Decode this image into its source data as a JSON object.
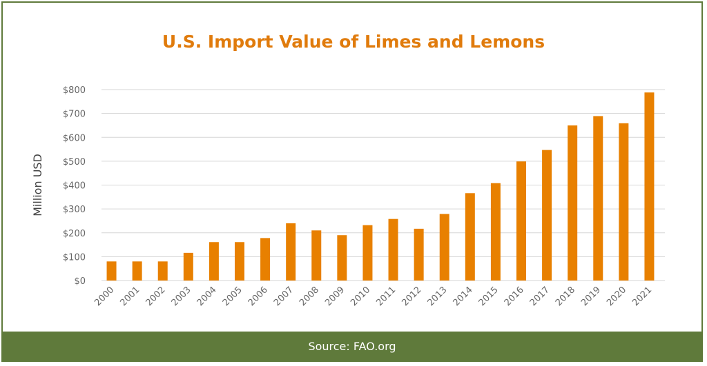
{
  "chart_data": {
    "type": "bar",
    "title": "U.S. Import Value of Limes and Lemons",
    "xlabel": "",
    "ylabel": "Million USD",
    "ylim": [
      0,
      800
    ],
    "yticks": [
      "$0",
      "$100",
      "$200",
      "$300",
      "$400",
      "$500",
      "$600",
      "$700",
      "$800"
    ],
    "categories": [
      "2000",
      "2001",
      "2002",
      "2003",
      "2004",
      "2005",
      "2006",
      "2007",
      "2008",
      "2009",
      "2010",
      "2011",
      "2012",
      "2013",
      "2014",
      "2015",
      "2016",
      "2017",
      "2018",
      "2019",
      "2020",
      "2021"
    ],
    "values": [
      80,
      80,
      80,
      116,
      161,
      161,
      178,
      240,
      210,
      190,
      232,
      258,
      217,
      279,
      366,
      408,
      499,
      547,
      650,
      689,
      659,
      788
    ],
    "grid": true,
    "colors": {
      "bar": "#e88000",
      "title": "#e07b0c",
      "footer": "#5f7a3b",
      "grid": "#d6d6d6"
    }
  },
  "footer": {
    "source": "Source: FAO.org"
  }
}
